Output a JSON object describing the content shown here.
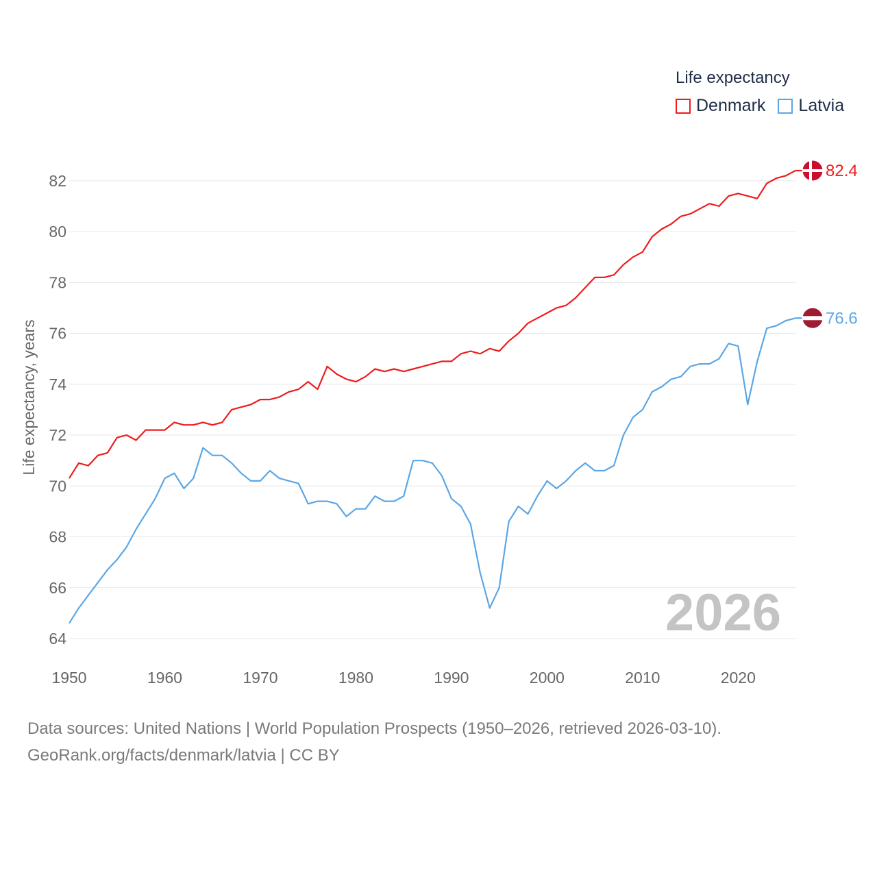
{
  "legend": {
    "title": "Life expectancy",
    "items": [
      {
        "name": "Denmark",
        "color": "#ee1c1c"
      },
      {
        "name": "Latvia",
        "color": "#5ba6e6"
      }
    ]
  },
  "footer": {
    "line1": "Data sources: United Nations | World Population Prospects (1950–2026, retrieved 2026-03-10).",
    "line2": "GeoRank.org/facts/denmark/latvia | CC BY"
  },
  "chart_data": {
    "type": "line",
    "title": "Life expectancy",
    "xlabel": "",
    "ylabel": "Life expectancy, years",
    "xlim": [
      1950,
      2026
    ],
    "ylim": [
      64,
      83
    ],
    "xticks": [
      1950,
      1960,
      1970,
      1980,
      1990,
      2000,
      2010,
      2020
    ],
    "yticks": [
      64,
      66,
      68,
      70,
      72,
      74,
      76,
      78,
      80,
      82
    ],
    "grid": true,
    "year_label": "2026",
    "legend_position": "top-right",
    "x": [
      1950,
      1951,
      1952,
      1953,
      1954,
      1955,
      1956,
      1957,
      1958,
      1959,
      1960,
      1961,
      1962,
      1963,
      1964,
      1965,
      1966,
      1967,
      1968,
      1969,
      1970,
      1971,
      1972,
      1973,
      1974,
      1975,
      1976,
      1977,
      1978,
      1979,
      1980,
      1981,
      1982,
      1983,
      1984,
      1985,
      1986,
      1987,
      1988,
      1989,
      1990,
      1991,
      1992,
      1993,
      1994,
      1995,
      1996,
      1997,
      1998,
      1999,
      2000,
      2001,
      2002,
      2003,
      2004,
      2005,
      2006,
      2007,
      2008,
      2009,
      2010,
      2011,
      2012,
      2013,
      2014,
      2015,
      2016,
      2017,
      2018,
      2019,
      2020,
      2021,
      2022,
      2023,
      2024,
      2025,
      2026
    ],
    "series": [
      {
        "name": "Denmark",
        "color": "#ee1c1c",
        "end_label": "82.4",
        "values": [
          70.3,
          70.9,
          70.8,
          71.2,
          71.3,
          71.9,
          72.0,
          71.8,
          72.2,
          72.2,
          72.2,
          72.5,
          72.4,
          72.4,
          72.5,
          72.4,
          72.5,
          73.0,
          73.1,
          73.2,
          73.4,
          73.4,
          73.5,
          73.7,
          73.8,
          74.1,
          73.8,
          74.7,
          74.4,
          74.2,
          74.1,
          74.3,
          74.6,
          74.5,
          74.6,
          74.5,
          74.6,
          74.7,
          74.8,
          74.9,
          74.9,
          75.2,
          75.3,
          75.2,
          75.4,
          75.3,
          75.7,
          76.0,
          76.4,
          76.6,
          76.8,
          77.0,
          77.1,
          77.4,
          77.8,
          78.2,
          78.2,
          78.3,
          78.7,
          79.0,
          79.2,
          79.8,
          80.1,
          80.3,
          80.6,
          80.7,
          80.9,
          81.1,
          81.0,
          81.4,
          81.5,
          81.4,
          81.3,
          81.9,
          82.1,
          82.2,
          82.4
        ]
      },
      {
        "name": "Latvia",
        "color": "#5ba6e6",
        "end_label": "76.6",
        "values": [
          64.6,
          65.2,
          65.7,
          66.2,
          66.7,
          67.1,
          67.6,
          68.3,
          68.9,
          69.5,
          70.3,
          70.5,
          69.9,
          70.3,
          71.5,
          71.2,
          71.2,
          70.9,
          70.5,
          70.2,
          70.2,
          70.6,
          70.3,
          70.2,
          70.1,
          69.3,
          69.4,
          69.4,
          69.3,
          68.8,
          69.1,
          69.1,
          69.6,
          69.4,
          69.4,
          69.6,
          71.0,
          71.0,
          70.9,
          70.4,
          69.5,
          69.2,
          68.5,
          66.6,
          65.2,
          66.0,
          68.6,
          69.2,
          68.9,
          69.6,
          70.2,
          69.9,
          70.2,
          70.6,
          70.9,
          70.6,
          70.6,
          70.8,
          72.0,
          72.7,
          73.0,
          73.7,
          73.9,
          74.2,
          74.3,
          74.7,
          74.8,
          74.8,
          75.0,
          75.6,
          75.5,
          73.2,
          74.9,
          76.2,
          76.3,
          76.5,
          76.6
        ]
      }
    ]
  }
}
